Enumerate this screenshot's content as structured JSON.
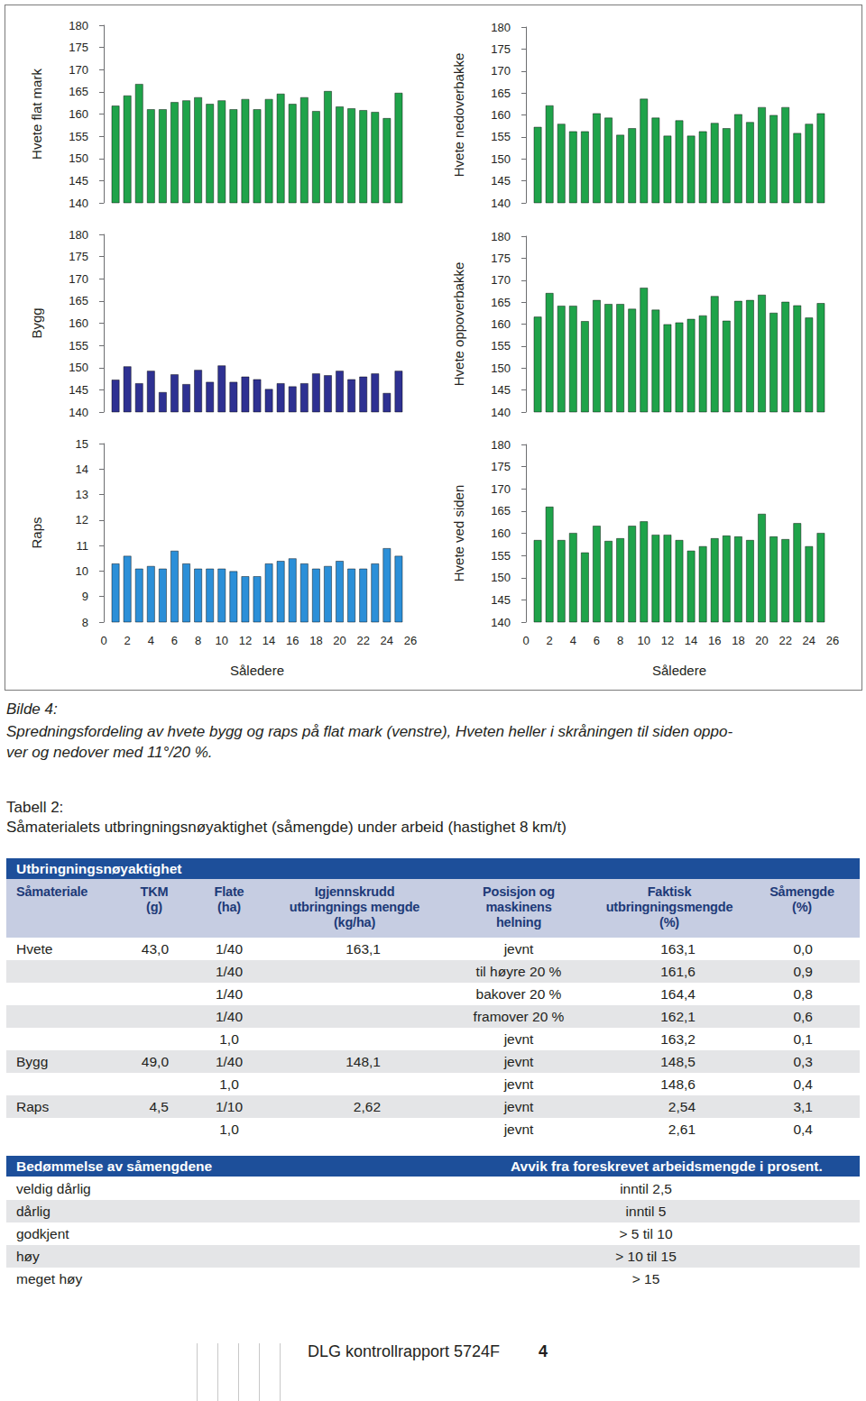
{
  "chart_data": [
    {
      "type": "bar",
      "ylabel": "Hvete flat mark",
      "color": "#1fa34a",
      "x": [
        1,
        2,
        3,
        4,
        5,
        6,
        7,
        8,
        9,
        10,
        11,
        12,
        13,
        14,
        15,
        16,
        17,
        18,
        19,
        20,
        21,
        22,
        23,
        24,
        25
      ],
      "values": [
        161.9,
        164.2,
        166.8,
        161.1,
        161.1,
        162.7,
        163.1,
        163.8,
        162.3,
        163.1,
        161.1,
        163.4,
        161.1,
        163.4,
        164.6,
        162.3,
        163.8,
        160.7,
        165.2,
        161.7,
        161.3,
        160.9,
        160.5,
        159.1,
        164.8
      ],
      "xlim": [
        0,
        26
      ],
      "xticks": [
        0,
        2,
        4,
        6,
        8,
        10,
        12,
        14,
        16,
        18,
        20,
        22,
        24,
        26
      ],
      "ylim": [
        140,
        180
      ],
      "yticks": [
        140,
        145,
        150,
        155,
        160,
        165,
        170,
        175,
        180
      ],
      "grid": false,
      "tick_labels": "y"
    },
    {
      "type": "bar",
      "ylabel": "Hvete nedoverbakke",
      "color": "#1fa34a",
      "x": [
        1,
        2,
        3,
        4,
        5,
        6,
        7,
        8,
        9,
        10,
        11,
        12,
        13,
        14,
        15,
        16,
        17,
        18,
        19,
        20,
        21,
        22,
        23,
        24,
        25
      ],
      "values": [
        157.3,
        162.2,
        158.0,
        156.3,
        156.3,
        160.4,
        159.4,
        155.5,
        157.0,
        163.7,
        159.4,
        155.3,
        158.8,
        155.3,
        156.3,
        158.2,
        157.0,
        160.2,
        158.4,
        161.8,
        160.0,
        161.8,
        155.9,
        158.0,
        160.4
      ],
      "xlim": [
        0,
        26
      ],
      "xticks": [
        0,
        2,
        4,
        6,
        8,
        10,
        12,
        14,
        16,
        18,
        20,
        22,
        24,
        26
      ],
      "ylim": [
        140,
        180
      ],
      "yticks": [
        140,
        145,
        150,
        155,
        160,
        165,
        170,
        175,
        180
      ],
      "grid": false,
      "tick_labels": "y"
    },
    {
      "type": "bar",
      "ylabel": "Bygg",
      "color": "#2e3192",
      "x": [
        1,
        2,
        3,
        4,
        5,
        6,
        7,
        8,
        9,
        10,
        11,
        12,
        13,
        14,
        15,
        16,
        17,
        18,
        19,
        20,
        21,
        22,
        23,
        24,
        25
      ],
      "values": [
        147.3,
        150.3,
        146.5,
        149.3,
        144.5,
        148.5,
        146.3,
        149.5,
        146.8,
        150.5,
        146.8,
        148.0,
        147.4,
        145.2,
        146.5,
        145.8,
        146.5,
        148.7,
        148.3,
        149.3,
        147.4,
        148.0,
        148.7,
        144.3,
        149.3
      ],
      "xlim": [
        0,
        26
      ],
      "xticks": [
        0,
        2,
        4,
        6,
        8,
        10,
        12,
        14,
        16,
        18,
        20,
        22,
        24,
        26
      ],
      "ylim": [
        140,
        180
      ],
      "yticks": [
        140,
        145,
        150,
        155,
        160,
        165,
        170,
        175,
        180
      ],
      "grid": false,
      "tick_labels": "y"
    },
    {
      "type": "bar",
      "ylabel": "Hvete oppoverbakke",
      "color": "#1fa34a",
      "x": [
        1,
        2,
        3,
        4,
        5,
        6,
        7,
        8,
        9,
        10,
        11,
        12,
        13,
        14,
        15,
        16,
        17,
        18,
        19,
        20,
        21,
        22,
        23,
        24,
        25
      ],
      "values": [
        161.7,
        167.1,
        164.2,
        164.2,
        160.7,
        165.5,
        164.6,
        164.6,
        163.5,
        168.3,
        163.3,
        160.0,
        160.4,
        161.2,
        162.0,
        166.4,
        160.8,
        165.3,
        165.5,
        166.7,
        162.6,
        165.1,
        164.3,
        161.5,
        164.8
      ],
      "xlim": [
        0,
        26
      ],
      "xticks": [
        0,
        2,
        4,
        6,
        8,
        10,
        12,
        14,
        16,
        18,
        20,
        22,
        24,
        26
      ],
      "ylim": [
        140,
        180
      ],
      "yticks": [
        140,
        145,
        150,
        155,
        160,
        165,
        170,
        175,
        180
      ],
      "grid": false,
      "tick_labels": "y"
    },
    {
      "type": "bar",
      "ylabel": "Raps",
      "xlabel": "Såledere",
      "color": "#2b8fd8",
      "x": [
        1,
        2,
        3,
        4,
        5,
        6,
        7,
        8,
        9,
        10,
        11,
        12,
        13,
        14,
        15,
        16,
        17,
        18,
        19,
        20,
        21,
        22,
        23,
        24,
        25
      ],
      "values": [
        10.3,
        10.6,
        10.1,
        10.2,
        10.1,
        10.8,
        10.3,
        10.1,
        10.1,
        10.1,
        10.0,
        9.8,
        9.8,
        10.3,
        10.4,
        10.5,
        10.3,
        10.1,
        10.2,
        10.4,
        10.1,
        10.1,
        10.3,
        10.9,
        10.6
      ],
      "xlim": [
        0,
        26
      ],
      "xticks": [
        0,
        2,
        4,
        6,
        8,
        10,
        12,
        14,
        16,
        18,
        20,
        22,
        24,
        26
      ],
      "ylim": [
        8,
        15
      ],
      "yticks": [
        8,
        9,
        10,
        11,
        12,
        13,
        14,
        15
      ],
      "grid": false
    },
    {
      "type": "bar",
      "ylabel": "Hvete ved siden",
      "xlabel": "Såledere",
      "color": "#1fa34a",
      "x": [
        1,
        2,
        3,
        4,
        5,
        6,
        7,
        8,
        9,
        10,
        11,
        12,
        13,
        14,
        15,
        16,
        17,
        18,
        19,
        20,
        21,
        22,
        23,
        24,
        25
      ],
      "values": [
        158.5,
        166.0,
        158.5,
        160.1,
        155.7,
        161.7,
        158.3,
        158.9,
        161.7,
        162.7,
        159.7,
        159.7,
        158.5,
        156.1,
        157.1,
        158.9,
        159.5,
        159.3,
        158.5,
        164.4,
        159.3,
        158.7,
        162.3,
        157.1,
        160.1
      ],
      "xlim": [
        0,
        26
      ],
      "xticks": [
        0,
        2,
        4,
        6,
        8,
        10,
        12,
        14,
        16,
        18,
        20,
        22,
        24,
        26
      ],
      "ylim": [
        140,
        180
      ],
      "yticks": [
        140,
        145,
        150,
        155,
        160,
        165,
        170,
        175,
        180
      ],
      "grid": false
    }
  ],
  "caption": {
    "label": "Bilde 4:",
    "lines": [
      "Spredningsfordeling av hvete bygg og raps på flat mark (venstre), Hveten heller i skråningen til siden oppo-",
      "ver og nedover med 11°/20 %."
    ]
  },
  "table_caption": {
    "label": "Tabell 2:",
    "text": "Såmaterialets utbringningsnøyaktighet (såmengde) under arbeid (hastighet 8 km/t)"
  },
  "table": {
    "title": "Utbringningsnøyaktighet",
    "header": [
      [
        "Såmateriale"
      ],
      [
        "TKM",
        "(g)"
      ],
      [
        "Flate",
        "(ha)"
      ],
      [
        "Igjennskrudd",
        "utbringnings mengde",
        "(kg/ha)"
      ],
      [
        "Posisjon og",
        "maskinens",
        "helning"
      ],
      [
        "Faktisk",
        "utbringningsmengde",
        "(%)"
      ],
      [
        "Såmengde",
        "(%)"
      ]
    ],
    "rows": [
      [
        "Hvete",
        "43,0",
        "1/40",
        "163,1",
        "jevnt",
        "163,1",
        "0,0"
      ],
      [
        null,
        null,
        "1/40",
        null,
        "til høyre 20 %",
        "161,6",
        "0,9"
      ],
      [
        null,
        null,
        "1/40",
        null,
        "bakover 20 %",
        "164,4",
        "0,8"
      ],
      [
        null,
        null,
        "1/40",
        null,
        "framover 20 %",
        "162,1",
        "0,6"
      ],
      [
        null,
        null,
        "1,0",
        null,
        "jevnt",
        "163,2",
        "0,1"
      ],
      [
        "Bygg",
        "49,0",
        "1/40",
        "148,1",
        "jevnt",
        "148,5",
        "0,3"
      ],
      [
        null,
        null,
        "1,0",
        null,
        "jevnt",
        "148,6",
        "0,4"
      ],
      [
        "Raps",
        "4,5",
        "1/10",
        "2,62",
        "jevnt",
        "2,54",
        "3,1"
      ],
      [
        null,
        null,
        "1,0",
        null,
        "jevnt",
        "2,61",
        "0,4"
      ]
    ]
  },
  "rating_table": {
    "header": [
      "Bedømmelse av såmengdene",
      "Avvik fra foreskrevet arbeidsmengde i prosent."
    ],
    "rows": [
      [
        "veldig dårlig",
        "inntil 2,5"
      ],
      [
        "dårlig",
        "inntil 5"
      ],
      [
        "godkjent",
        "> 5 til 10"
      ],
      [
        "høy",
        "> 10 til 15"
      ],
      [
        "meget høy",
        "> 15"
      ]
    ]
  },
  "footer": {
    "text": "DLG kontrollrapport 5724F",
    "page": "4"
  }
}
